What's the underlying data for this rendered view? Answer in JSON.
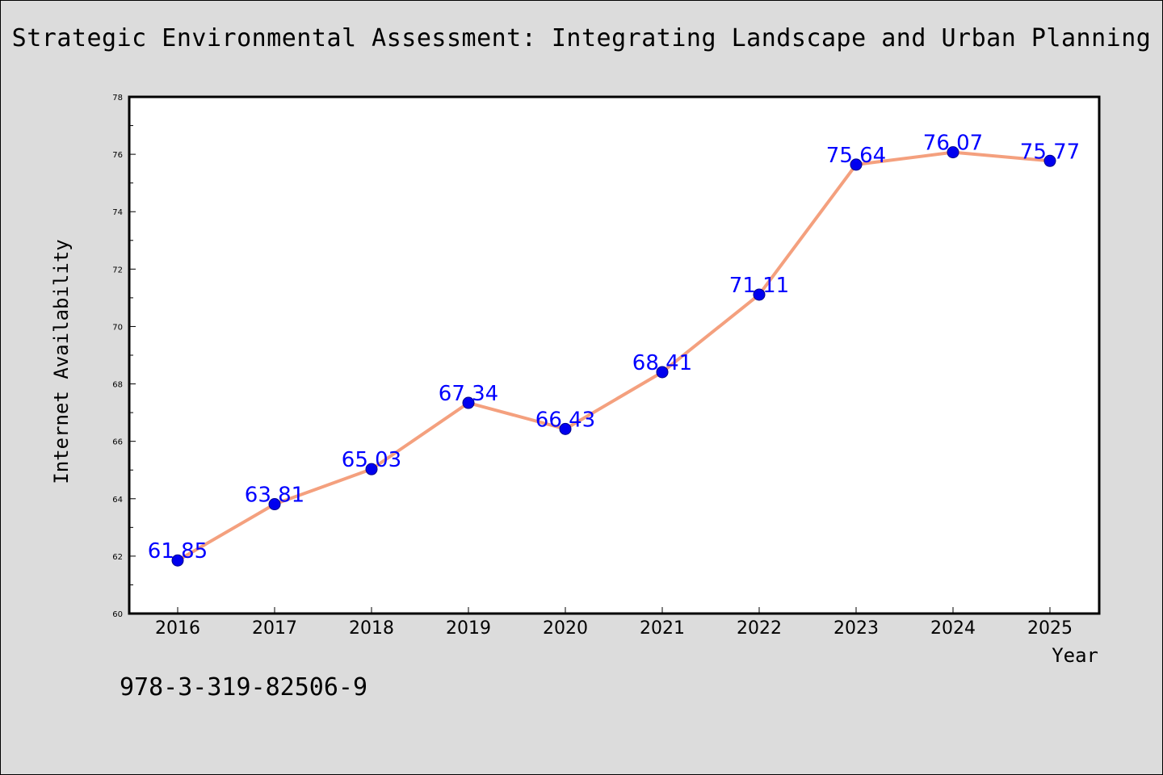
{
  "chart_data": {
    "type": "line",
    "title": "Strategic Environmental Assessment: Integrating Landscape and Urban Planning",
    "xlabel": "Year",
    "ylabel": "Internet Availability",
    "categories": [
      "2016",
      "2017",
      "2018",
      "2019",
      "2020",
      "2021",
      "2022",
      "2023",
      "2024",
      "2025"
    ],
    "series": [
      {
        "values": [
          61.85,
          63.81,
          65.03,
          67.34,
          66.43,
          68.41,
          71.11,
          75.64,
          76.07,
          75.77
        ],
        "data_labels": [
          "61.85",
          "63.81",
          "65.03",
          "67.34",
          "66.43",
          "68.41",
          "71.11",
          "75.64",
          "76.07",
          "75.77"
        ]
      }
    ],
    "ylim": [
      60,
      78
    ],
    "yticks": [
      "60",
      "62",
      "64",
      "66",
      "68",
      "70",
      "72",
      "74",
      "76",
      "78"
    ],
    "grid": false,
    "legend": "none",
    "colors": {
      "line": "#f4a07e",
      "marker": "#0000ee",
      "label": "#0000ff",
      "plot_bg": "#ffffff",
      "page_bg": "#dcdcdc"
    }
  },
  "footer_text": "978-3-319-82506-9"
}
